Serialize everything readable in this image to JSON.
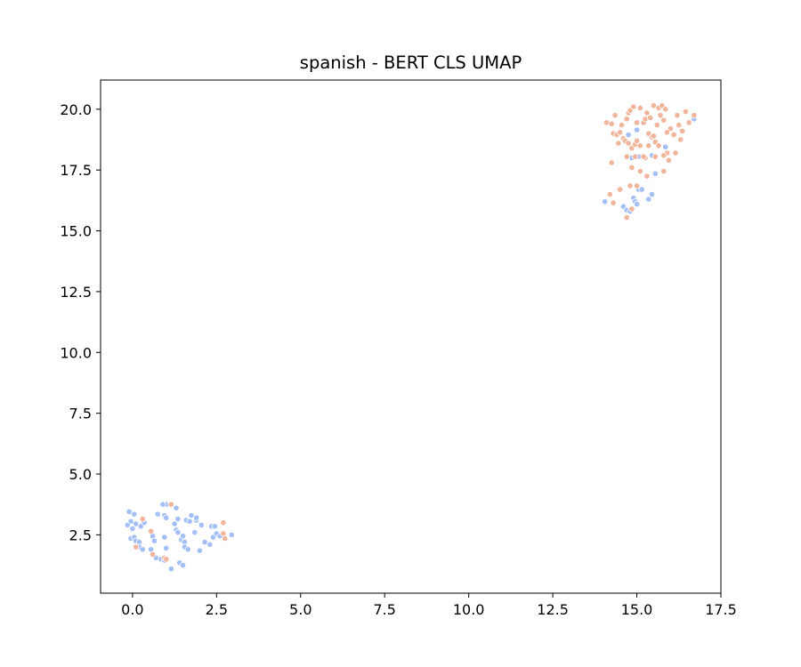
{
  "chart_data": {
    "type": "scatter",
    "title": "spanish - BERT CLS UMAP",
    "xlabel": "",
    "ylabel": "",
    "xlim": [
      -0.95,
      17.5
    ],
    "ylim": [
      0.1,
      21.2
    ],
    "x_ticks": [
      0.0,
      2.5,
      5.0,
      7.5,
      10.0,
      12.5,
      15.0,
      17.5
    ],
    "x_tick_labels": [
      "0.0",
      "2.5",
      "5.0",
      "7.5",
      "10.0",
      "12.5",
      "15.0",
      "17.5"
    ],
    "y_ticks": [
      2.5,
      5.0,
      7.5,
      10.0,
      12.5,
      15.0,
      17.5,
      20.0
    ],
    "y_tick_labels": [
      "2.5",
      "5.0",
      "7.5",
      "10.0",
      "12.5",
      "15.0",
      "17.5",
      "20.0"
    ],
    "grid": false,
    "legend": "none",
    "colors": {
      "blue": "#a3bff6",
      "orange": "#f2b49a"
    },
    "series": [
      {
        "color": "blue",
        "points": [
          [
            -0.1,
            3.45
          ],
          [
            0.05,
            3.35
          ],
          [
            -0.05,
            3.05
          ],
          [
            0.1,
            2.95
          ],
          [
            -0.15,
            2.9
          ],
          [
            0.0,
            2.75
          ],
          [
            -0.05,
            2.35
          ],
          [
            0.05,
            2.4
          ],
          [
            0.1,
            2.25
          ],
          [
            0.2,
            2.2
          ],
          [
            0.25,
            2.85
          ],
          [
            0.35,
            3.0
          ],
          [
            0.2,
            2.0
          ],
          [
            0.3,
            1.9
          ],
          [
            0.55,
            1.9
          ],
          [
            0.6,
            2.45
          ],
          [
            0.65,
            2.25
          ],
          [
            0.75,
            3.35
          ],
          [
            0.7,
            1.55
          ],
          [
            0.85,
            1.5
          ],
          [
            0.95,
            1.45
          ],
          [
            0.95,
            2.4
          ],
          [
            0.95,
            3.3
          ],
          [
            1.0,
            3.2
          ],
          [
            1.0,
            3.75
          ],
          [
            0.9,
            3.75
          ],
          [
            1.15,
            1.1
          ],
          [
            1.25,
            2.95
          ],
          [
            1.3,
            2.7
          ],
          [
            1.3,
            3.6
          ],
          [
            1.35,
            3.15
          ],
          [
            1.35,
            2.6
          ],
          [
            1.4,
            1.35
          ],
          [
            1.45,
            2.3
          ],
          [
            1.5,
            1.25
          ],
          [
            1.5,
            2.45
          ],
          [
            1.55,
            2.2
          ],
          [
            1.6,
            3.1
          ],
          [
            1.55,
            2.0
          ],
          [
            1.65,
            1.9
          ],
          [
            1.7,
            3.05
          ],
          [
            1.75,
            3.3
          ],
          [
            1.85,
            2.6
          ],
          [
            1.9,
            3.1
          ],
          [
            1.9,
            3.2
          ],
          [
            2.0,
            1.85
          ],
          [
            2.05,
            2.9
          ],
          [
            2.15,
            2.2
          ],
          [
            2.3,
            2.1
          ],
          [
            2.35,
            2.85
          ],
          [
            2.4,
            2.4
          ],
          [
            2.45,
            2.85
          ],
          [
            2.5,
            2.55
          ],
          [
            2.6,
            2.45
          ],
          [
            2.95,
            2.5
          ],
          [
            1.0,
            1.95
          ],
          [
            14.05,
            16.2
          ],
          [
            14.6,
            16.0
          ],
          [
            14.7,
            15.85
          ],
          [
            14.8,
            15.8
          ],
          [
            14.9,
            16.35
          ],
          [
            14.95,
            16.2
          ],
          [
            15.0,
            16.1
          ],
          [
            15.05,
            16.7
          ],
          [
            15.15,
            16.7
          ],
          [
            15.35,
            16.3
          ],
          [
            15.45,
            16.5
          ],
          [
            14.85,
            18.0
          ],
          [
            15.05,
            18.05
          ],
          [
            15.45,
            18.1
          ],
          [
            15.55,
            17.35
          ],
          [
            15.0,
            19.15
          ],
          [
            14.75,
            18.95
          ],
          [
            15.85,
            18.45
          ],
          [
            16.7,
            19.6
          ]
        ]
      },
      {
        "color": "orange",
        "points": [
          [
            0.3,
            3.15
          ],
          [
            0.1,
            2.0
          ],
          [
            0.55,
            2.65
          ],
          [
            0.6,
            1.7
          ],
          [
            0.95,
            1.55
          ],
          [
            1.0,
            1.5
          ],
          [
            1.15,
            3.75
          ],
          [
            2.7,
            3.0
          ],
          [
            2.7,
            2.55
          ],
          [
            2.75,
            2.35
          ],
          [
            14.1,
            19.45
          ],
          [
            14.25,
            19.4
          ],
          [
            14.3,
            19.0
          ],
          [
            14.35,
            19.75
          ],
          [
            14.4,
            18.95
          ],
          [
            14.5,
            19.05
          ],
          [
            14.55,
            19.35
          ],
          [
            14.6,
            18.8
          ],
          [
            14.65,
            18.7
          ],
          [
            14.7,
            19.6
          ],
          [
            14.75,
            19.85
          ],
          [
            14.8,
            19.95
          ],
          [
            14.9,
            20.1
          ],
          [
            14.85,
            18.4
          ],
          [
            14.95,
            18.55
          ],
          [
            15.0,
            18.7
          ],
          [
            15.1,
            20.05
          ],
          [
            15.2,
            19.45
          ],
          [
            15.25,
            19.6
          ],
          [
            15.3,
            19.85
          ],
          [
            15.35,
            19.0
          ],
          [
            15.4,
            19.65
          ],
          [
            15.45,
            18.85
          ],
          [
            15.5,
            20.15
          ],
          [
            15.55,
            18.65
          ],
          [
            15.6,
            19.35
          ],
          [
            15.65,
            20.05
          ],
          [
            15.7,
            19.75
          ],
          [
            15.75,
            20.15
          ],
          [
            15.8,
            19.55
          ],
          [
            15.85,
            20.0
          ],
          [
            15.9,
            18.2
          ],
          [
            15.95,
            17.9
          ],
          [
            16.0,
            19.2
          ],
          [
            16.1,
            18.95
          ],
          [
            16.2,
            19.75
          ],
          [
            16.25,
            19.35
          ],
          [
            16.3,
            18.75
          ],
          [
            16.35,
            19.1
          ],
          [
            16.45,
            19.9
          ],
          [
            16.55,
            19.45
          ],
          [
            16.7,
            19.75
          ],
          [
            16.15,
            18.2
          ],
          [
            15.8,
            17.45
          ],
          [
            15.3,
            17.25
          ],
          [
            15.1,
            17.45
          ],
          [
            14.85,
            17.6
          ],
          [
            15.25,
            18.0
          ],
          [
            14.25,
            17.8
          ],
          [
            14.7,
            18.05
          ],
          [
            15.55,
            18.05
          ],
          [
            15.8,
            18.1
          ],
          [
            14.8,
            16.85
          ],
          [
            14.5,
            16.7
          ],
          [
            14.2,
            16.5
          ],
          [
            14.3,
            16.15
          ],
          [
            15.0,
            16.85
          ],
          [
            14.7,
            15.55
          ],
          [
            14.85,
            15.9
          ],
          [
            14.95,
            18.05
          ],
          [
            15.2,
            18.05
          ],
          [
            15.1,
            18.5
          ],
          [
            15.35,
            18.5
          ],
          [
            15.5,
            18.9
          ],
          [
            15.0,
            19.45
          ],
          [
            14.45,
            18.6
          ],
          [
            14.75,
            18.6
          ],
          [
            15.65,
            18.5
          ],
          [
            15.9,
            19.05
          ]
        ]
      }
    ]
  }
}
